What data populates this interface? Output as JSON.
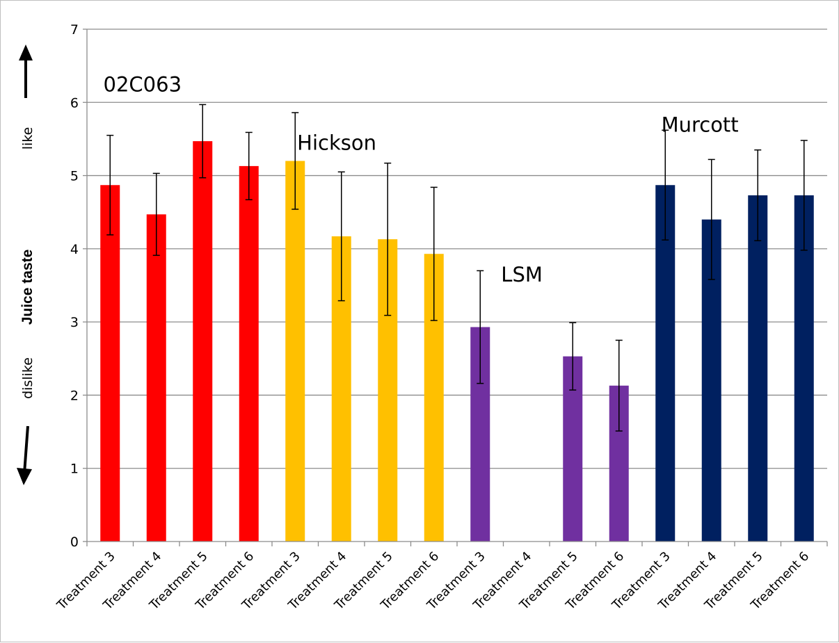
{
  "chart_data": {
    "type": "bar",
    "ylabel": "Juice taste",
    "y_side_labels": {
      "top": "like",
      "bottom": "dislike"
    },
    "ylim": [
      0,
      7
    ],
    "yticks": [
      0,
      1,
      2,
      3,
      4,
      5,
      6,
      7
    ],
    "grid": true,
    "categories": [
      "Treatment 3",
      "Treatment 4",
      "Treatment 5",
      "Treatment 6",
      "Treatment 3",
      "Treatment 4",
      "Treatment 5",
      "Treatment 6",
      "Treatment 3",
      "Treatment 4",
      "Treatment 5",
      "Treatment 6",
      "Treatment 3",
      "Treatment 4",
      "Treatment 5",
      "Treatment 6"
    ],
    "groups": [
      {
        "name": "02C063",
        "color": "#ff0000",
        "values": [
          4.87,
          4.47,
          5.47,
          5.13
        ],
        "errors": [
          0.68,
          0.56,
          0.5,
          0.46
        ]
      },
      {
        "name": "Hickson",
        "color": "#ffc000",
        "values": [
          5.2,
          4.17,
          4.13,
          3.93
        ],
        "errors": [
          0.66,
          0.88,
          1.04,
          0.91
        ]
      },
      {
        "name": "LSM",
        "color": "#7030a0",
        "values": [
          2.93,
          null,
          2.53,
          2.13
        ],
        "errors": [
          0.77,
          null,
          0.46,
          0.62
        ]
      },
      {
        "name": "Murcott",
        "color": "#002060",
        "values": [
          4.87,
          4.4,
          4.73,
          4.73
        ],
        "errors": [
          0.75,
          0.82,
          0.62,
          0.75
        ]
      }
    ]
  }
}
